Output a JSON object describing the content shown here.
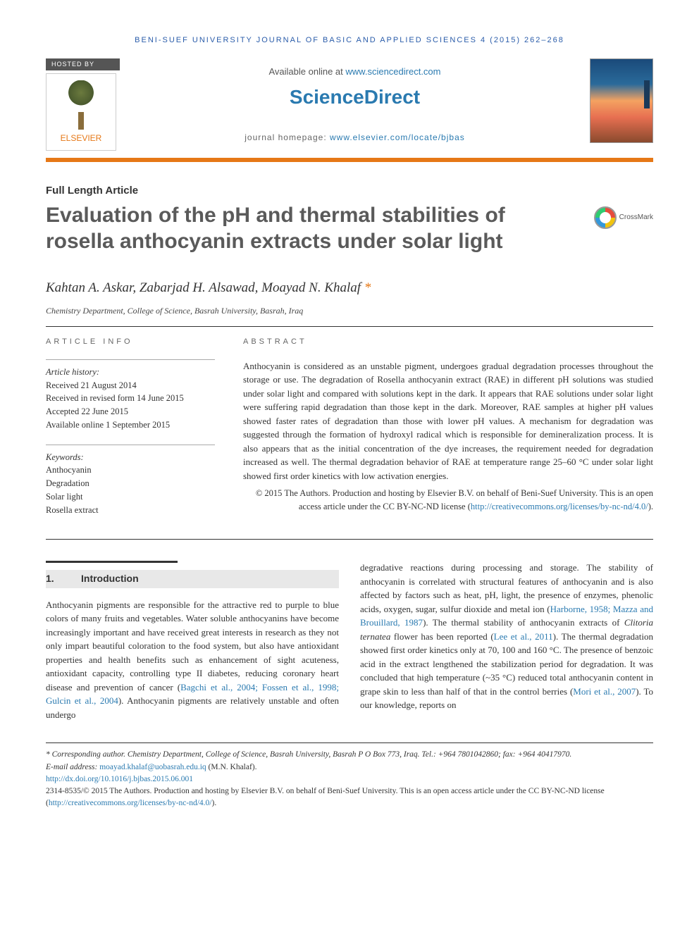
{
  "journal_header": "BENI-SUEF UNIVERSITY JOURNAL OF BASIC AND APPLIED SCIENCES 4 (2015) 262–268",
  "hosted_by": "HOSTED BY",
  "elsevier": "ELSEVIER",
  "available_online": "Available online at ",
  "sd_url": "www.sciencedirect.com",
  "sciencedirect": "ScienceDirect",
  "journal_homepage_label": "journal homepage: ",
  "journal_homepage_url": "www.elsevier.com/locate/bjbas",
  "article_type": "Full Length Article",
  "title": "Evaluation of the pH and thermal stabilities of rosella anthocyanin extracts under solar light",
  "crossmark": "CrossMark",
  "authors": "Kahtan A. Askar, Zabarjad H. Alsawad, Moayad N. Khalaf ",
  "corr_mark": "*",
  "affiliation": "Chemistry Department, College of Science, Basrah University, Basrah, Iraq",
  "article_info_label": "ARTICLE INFO",
  "abstract_label": "ABSTRACT",
  "history": {
    "head": "Article history:",
    "received": "Received 21 August 2014",
    "revised": "Received in revised form 14 June 2015",
    "accepted": "Accepted 22 June 2015",
    "online": "Available online 1 September 2015"
  },
  "keywords": {
    "head": "Keywords:",
    "items": [
      "Anthocyanin",
      "Degradation",
      "Solar light",
      "Rosella extract"
    ]
  },
  "abstract": "Anthocyanin is considered as an unstable pigment, undergoes gradual degradation processes throughout the storage or use. The degradation of Rosella anthocyanin extract (RAE) in different pH solutions was studied under solar light and compared with solutions kept in the dark. It appears that RAE solutions under solar light were suffering rapid degradation than those kept in the dark. Moreover, RAE samples at higher pH values showed faster rates of degradation than those with lower pH values. A mechanism for degradation was suggested through the formation of hydroxyl radical which is responsible for demineralization process. It is also appears that as the initial concentration of the dye increases, the requirement needed for degradation increased as well. The thermal degradation behavior of RAE at temperature range 25–60 °C under solar light showed first order kinetics with low activation energies.",
  "copyright_text": "© 2015 The Authors. Production and hosting by Elsevier B.V. on behalf of Beni-Suef University. This is an open access article under the CC BY-NC-ND license (",
  "cc_url": "http://creativecommons.org/licenses/by-nc-nd/4.0/",
  "copyright_close": ").",
  "intro_num": "1.",
  "intro_title": "Introduction",
  "col1": {
    "p1a": "Anthocyanin pigments are responsible for the attractive red to purple to blue colors of many fruits and vegetables. Water soluble anthocyanins have become increasingly important and have received great interests in research as they not only impart beautiful coloration to the food system, but also have antioxidant properties and health benefits such as enhancement of sight acuteness, antioxidant capacity, controlling type II diabetes, reducing coronary heart disease and prevention of cancer (",
    "ref1": "Bagchi et al., 2004; Fossen et al., 1998; Gulcin et al., 2004",
    "p1b": "). Anthocyanin pigments are relatively unstable and often undergo"
  },
  "col2": {
    "p1a": "degradative reactions during processing and storage. The stability of anthocyanin is correlated with structural features of anthocyanin and is also affected by factors such as heat, pH, light, the presence of enzymes, phenolic acids, oxygen, sugar, sulfur dioxide and metal ion (",
    "ref1": "Harborne, 1958; Mazza and Brouillard, 1987",
    "p1b": "). The thermal stability of anthocyanin extracts of ",
    "ital": "Clitoria ternatea",
    "p1c": " flower has been reported (",
    "ref2": "Lee et al., 2011",
    "p1d": "). The thermal degradation showed first order kinetics only at 70, 100 and 160 °C. The presence of benzoic acid in the extract lengthened the stabilization period for degradation. It was concluded that high temperature (~35 °C) reduced total anthocyanin content in grape skin to less than half of that in the control berries (",
    "ref3": "Mori et al., 2007",
    "p1e": "). To our knowledge, reports on"
  },
  "footnotes": {
    "corr": "* Corresponding author. Chemistry Department, College of Science, Basrah University, Basrah P O Box 773, Iraq. Tel.: +964 7801042860; fax: +964 40417970.",
    "email_label": "E-mail address: ",
    "email": "moayad.khalaf@uobasrah.edu.iq",
    "email_name": " (M.N. Khalaf).",
    "doi": "http://dx.doi.org/10.1016/j.bjbas.2015.06.001",
    "issn": "2314-8535/© 2015 The Authors. Production and hosting by Elsevier B.V. on behalf of Beni-Suef University. This is an open access article under the CC BY-NC-ND license (",
    "cc_url": "http://creativecommons.org/licenses/by-nc-nd/4.0/",
    "close": ")."
  }
}
